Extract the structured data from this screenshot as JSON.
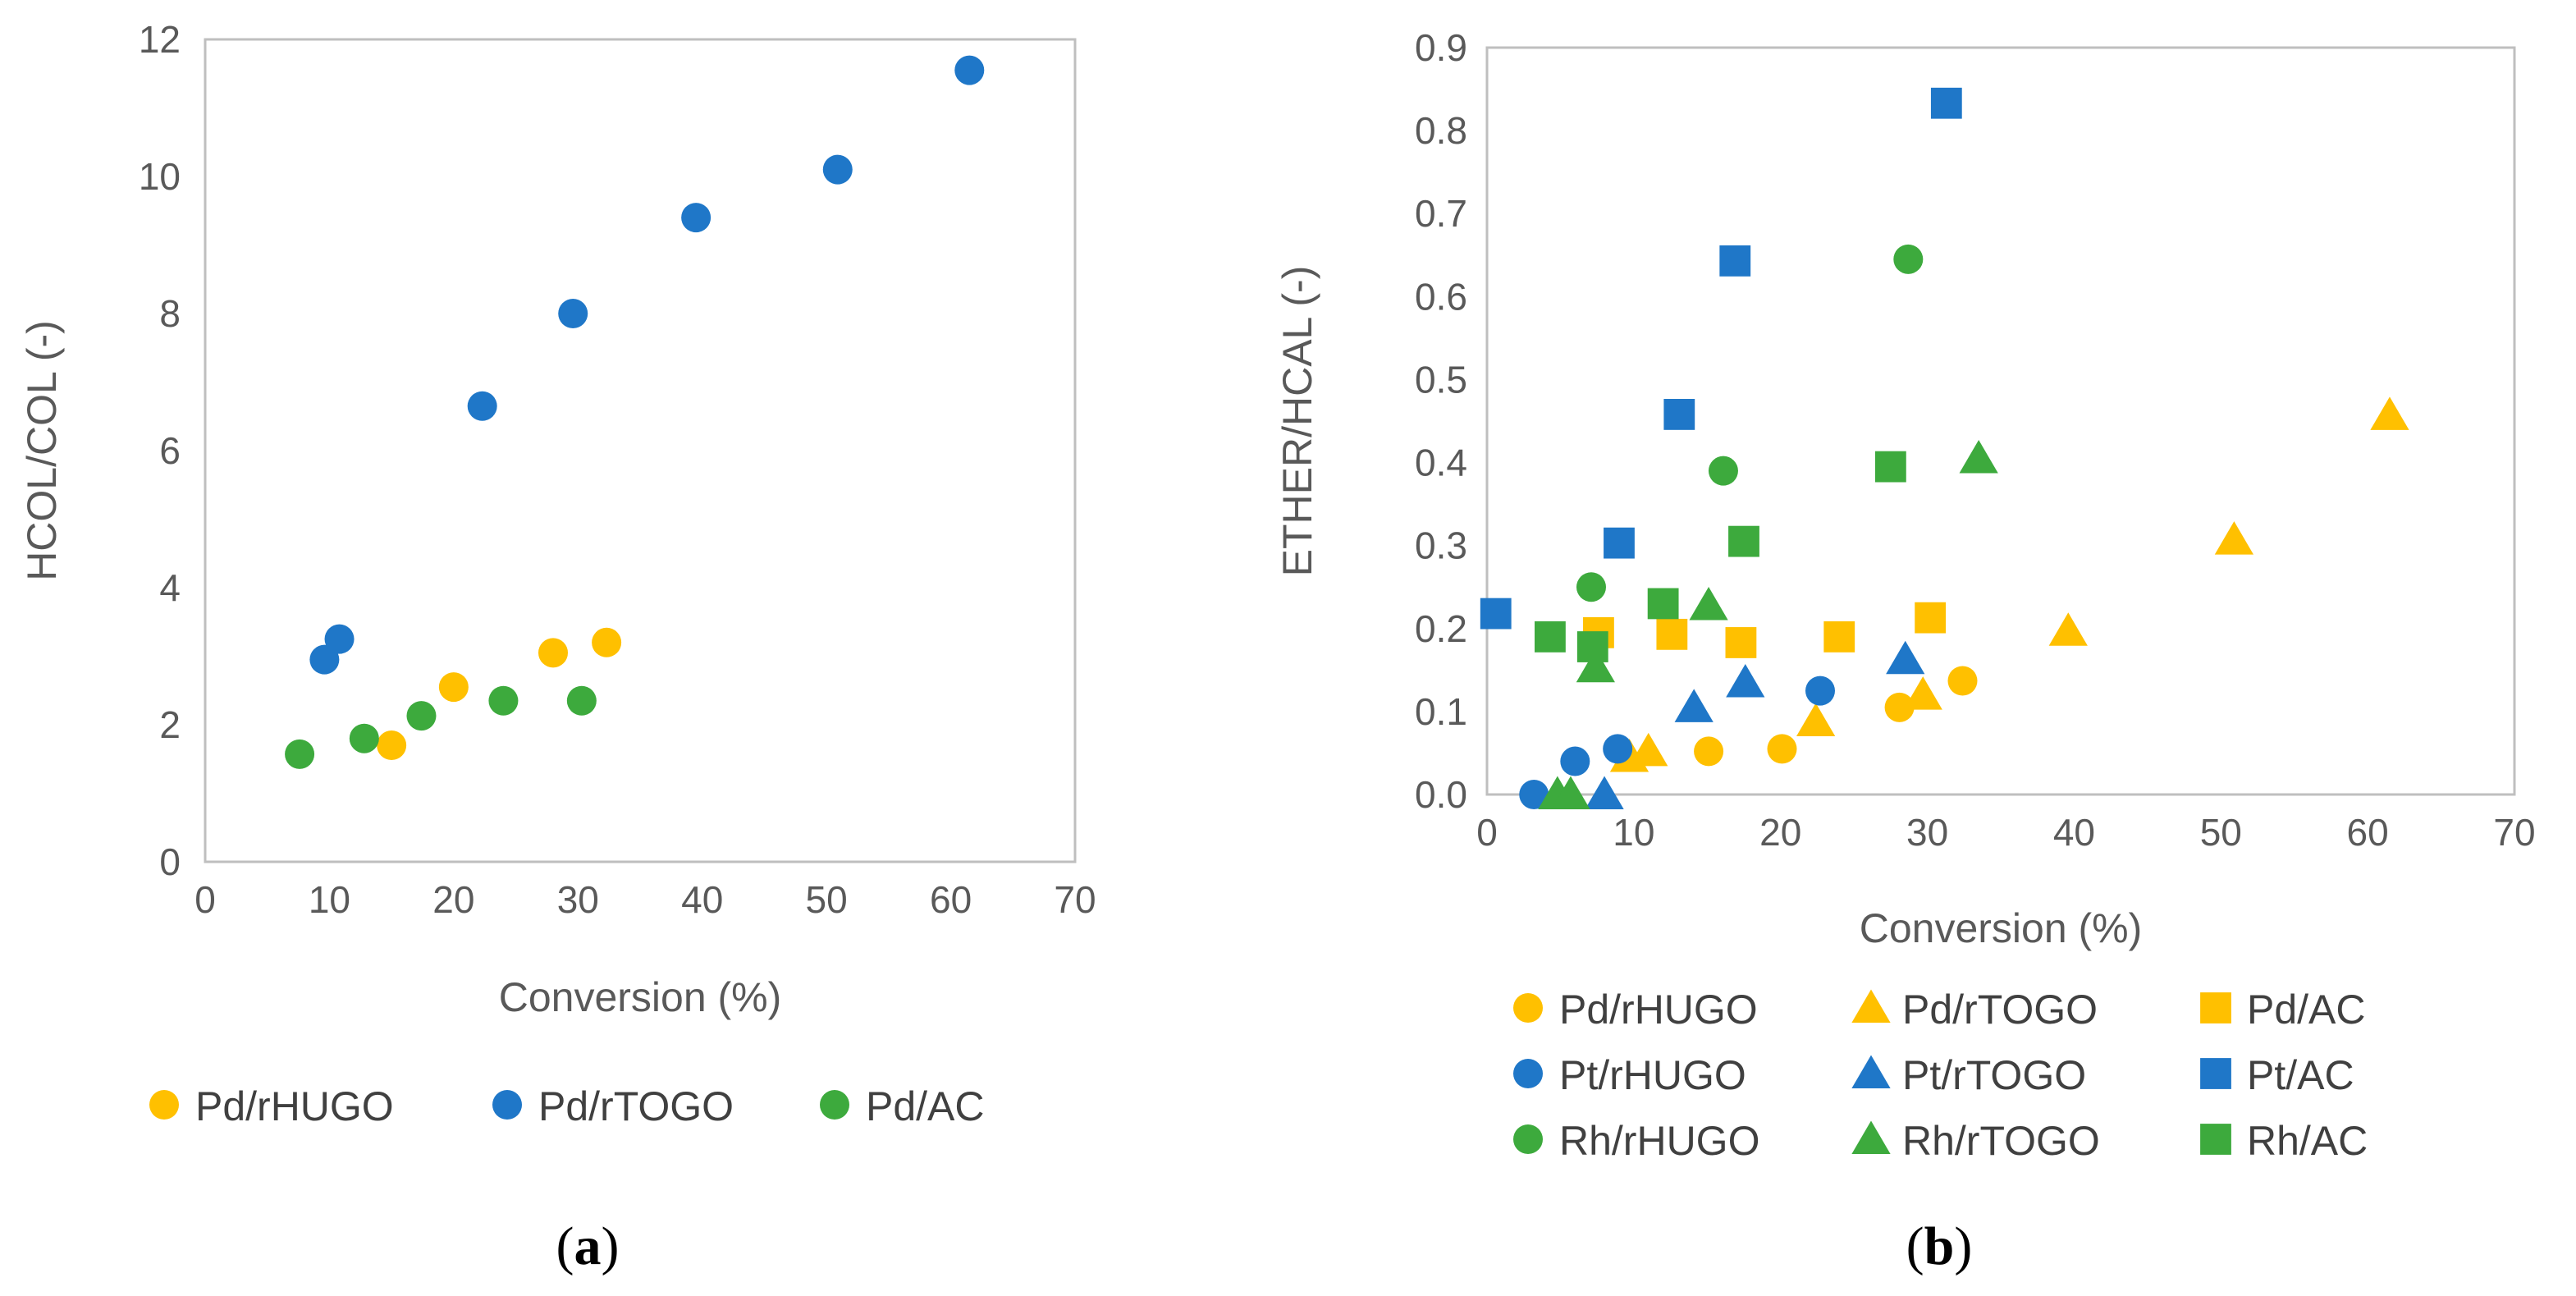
{
  "colors": {
    "yellow": "#FFC000",
    "blue": "#1F77C8",
    "green": "#3DAA3D",
    "axis": "#BFBFBF",
    "text": "#595959"
  },
  "chart_data": [
    {
      "type": "scatter",
      "caption": {
        "open": "(",
        "letter": "a",
        "close": ")"
      },
      "xlabel": "Conversion (%)",
      "ylabel": "HCOL/COL (-)",
      "xlim": [
        0,
        70
      ],
      "ylim": [
        0,
        12
      ],
      "xticks": [
        "0",
        "10",
        "20",
        "30",
        "40",
        "50",
        "60",
        "70"
      ],
      "yticks": [
        "0",
        "2",
        "4",
        "6",
        "8",
        "10",
        "12"
      ],
      "grid": false,
      "legend_position": "bottom",
      "legend_columns": 3,
      "series": [
        {
          "name": "Pd/rHUGO",
          "color": "yellow",
          "marker": "circle",
          "points": [
            [
              15.0,
              1.7
            ],
            [
              20.0,
              2.55
            ],
            [
              28.0,
              3.05
            ],
            [
              32.3,
              3.2
            ]
          ]
        },
        {
          "name": "Pd/rTOGO",
          "color": "blue",
          "marker": "circle",
          "points": [
            [
              9.6,
              2.95
            ],
            [
              10.8,
              3.25
            ],
            [
              22.3,
              6.65
            ],
            [
              29.6,
              8.0
            ],
            [
              39.5,
              9.4
            ],
            [
              50.9,
              10.1
            ],
            [
              61.5,
              11.55
            ]
          ]
        },
        {
          "name": "Pd/AC",
          "color": "green",
          "marker": "circle",
          "points": [
            [
              7.6,
              1.57
            ],
            [
              12.8,
              1.8
            ],
            [
              17.4,
              2.13
            ],
            [
              24.0,
              2.35
            ],
            [
              30.3,
              2.35
            ]
          ]
        }
      ]
    },
    {
      "type": "scatter",
      "caption": {
        "open": "(",
        "letter": "b",
        "close": ")"
      },
      "xlabel": "Conversion (%)",
      "ylabel": "ETHER/HCAL (-)",
      "xlim": [
        0,
        70
      ],
      "ylim": [
        0,
        0.9
      ],
      "xticks": [
        "0",
        "10",
        "20",
        "30",
        "40",
        "50",
        "60",
        "70"
      ],
      "yticks": [
        "0.0",
        "0.1",
        "0.2",
        "0.3",
        "0.4",
        "0.5",
        "0.6",
        "0.7",
        "0.8",
        "0.9"
      ],
      "grid": false,
      "legend_position": "bottom",
      "legend_columns": 3,
      "series": [
        {
          "name": "Pd/rHUGO",
          "color": "yellow",
          "marker": "circle",
          "points": [
            [
              15.1,
              0.052
            ],
            [
              20.1,
              0.055
            ],
            [
              28.1,
              0.105
            ],
            [
              32.4,
              0.137
            ]
          ]
        },
        {
          "name": "Pd/rTOGO",
          "color": "yellow",
          "marker": "triangle",
          "points": [
            [
              9.7,
              0.045
            ],
            [
              11.0,
              0.052
            ],
            [
              22.4,
              0.088
            ],
            [
              29.7,
              0.12
            ],
            [
              39.6,
              0.197
            ],
            [
              50.9,
              0.307
            ],
            [
              61.5,
              0.457
            ]
          ]
        },
        {
          "name": "Pd/AC",
          "color": "yellow",
          "marker": "square",
          "points": [
            [
              7.6,
              0.195
            ],
            [
              12.6,
              0.193
            ],
            [
              17.3,
              0.183
            ],
            [
              24.0,
              0.19
            ],
            [
              30.2,
              0.213
            ]
          ]
        },
        {
          "name": "Pt/rHUGO",
          "color": "blue",
          "marker": "circle",
          "points": [
            [
              3.2,
              0.0
            ],
            [
              6.0,
              0.04
            ],
            [
              8.9,
              0.055
            ],
            [
              22.7,
              0.125
            ]
          ]
        },
        {
          "name": "Pt/rTOGO",
          "color": "blue",
          "marker": "triangle",
          "points": [
            [
              8.0,
              0.0
            ],
            [
              14.1,
              0.105
            ],
            [
              17.6,
              0.135
            ],
            [
              28.5,
              0.163
            ]
          ]
        },
        {
          "name": "Pt/AC",
          "color": "blue",
          "marker": "square",
          "points": [
            [
              0.6,
              0.218
            ],
            [
              9.0,
              0.303
            ],
            [
              13.1,
              0.458
            ],
            [
              16.9,
              0.643
            ],
            [
              31.3,
              0.833
            ]
          ]
        },
        {
          "name": "Rh/rHUGO",
          "color": "green",
          "marker": "circle",
          "points": [
            [
              7.1,
              0.25
            ],
            [
              16.1,
              0.39
            ],
            [
              28.7,
              0.645
            ]
          ]
        },
        {
          "name": "Rh/rTOGO",
          "color": "green",
          "marker": "triangle",
          "points": [
            [
              4.8,
              0.0
            ],
            [
              5.7,
              0.0
            ],
            [
              7.4,
              0.153
            ],
            [
              15.1,
              0.228
            ],
            [
              33.5,
              0.405
            ]
          ]
        },
        {
          "name": "Rh/AC",
          "color": "green",
          "marker": "square",
          "points": [
            [
              4.3,
              0.19
            ],
            [
              7.2,
              0.178
            ],
            [
              12.0,
              0.23
            ],
            [
              17.5,
              0.305
            ],
            [
              27.5,
              0.395
            ]
          ]
        }
      ]
    }
  ]
}
